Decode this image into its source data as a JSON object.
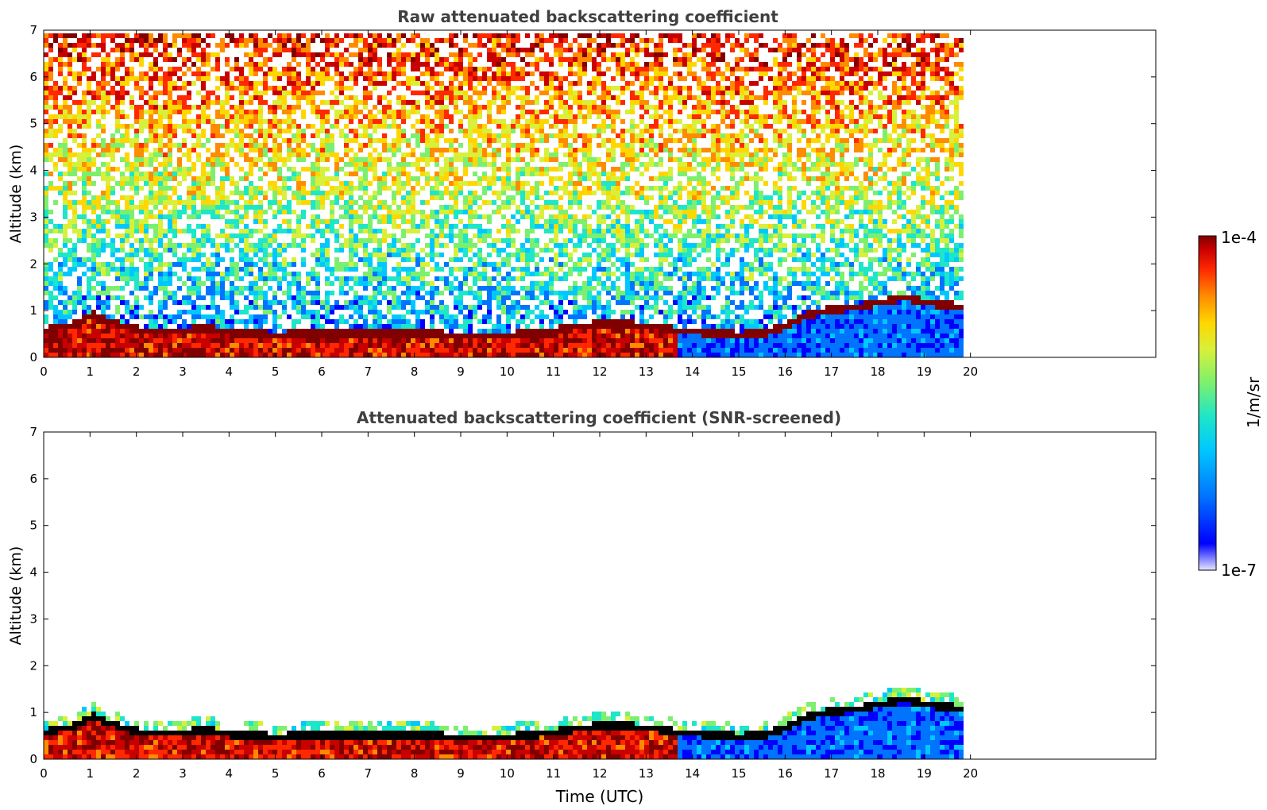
{
  "colors": {
    "colormap": [
      "#0000ff",
      "#0073ff",
      "#00c8ff",
      "#1ee6c8",
      "#7cf06e",
      "#d8f03a",
      "#ffd700",
      "#ff8c00",
      "#ff2800",
      "#c80000",
      "#800000"
    ],
    "screened_peak": "#000000"
  },
  "chart_data": [
    {
      "type": "heatmap",
      "title": "Raw attenuated backscattering coefficient",
      "xlabel": "",
      "ylabel": "Altitude (km)",
      "xlim": [
        0,
        24
      ],
      "ylim": [
        0,
        7
      ],
      "xticks": [
        "0",
        "1",
        "2",
        "3",
        "4",
        "5",
        "6",
        "7",
        "8",
        "9",
        "10",
        "11",
        "12",
        "13",
        "14",
        "15",
        "16",
        "17",
        "18",
        "19",
        "20"
      ],
      "yticks": [
        "0",
        "1",
        "2",
        "3",
        "4",
        "5",
        "6",
        "7"
      ],
      "data_end_hour": 19.8,
      "boundary_layer_top_km": [
        [
          0,
          0.55
        ],
        [
          0.5,
          0.65
        ],
        [
          1.0,
          0.9
        ],
        [
          1.5,
          0.7
        ],
        [
          2,
          0.55
        ],
        [
          3,
          0.55
        ],
        [
          3.5,
          0.6
        ],
        [
          4,
          0.5
        ],
        [
          5,
          0.45
        ],
        [
          6,
          0.5
        ],
        [
          7,
          0.5
        ],
        [
          8,
          0.48
        ],
        [
          9,
          0.45
        ],
        [
          10,
          0.45
        ],
        [
          11,
          0.55
        ],
        [
          12,
          0.7
        ],
        [
          13,
          0.65
        ],
        [
          13.6,
          0.55
        ],
        [
          14,
          0.52
        ],
        [
          15,
          0.45
        ],
        [
          15.5,
          0.5
        ],
        [
          16,
          0.65
        ],
        [
          16.5,
          0.9
        ],
        [
          17,
          1.0
        ],
        [
          17.5,
          1.05
        ],
        [
          18,
          1.15
        ],
        [
          18.5,
          1.25
        ],
        [
          19,
          1.15
        ],
        [
          19.8,
          1.05
        ]
      ],
      "colorbar": {
        "min_label": "1e-7",
        "max_label": "1e-4",
        "label": "1/m/sr",
        "scale": "log"
      }
    },
    {
      "type": "heatmap",
      "title": "Attenuated backscattering coefficient (SNR-screened)",
      "xlabel": "Time (UTC)",
      "ylabel": "Altitude (km)",
      "xlim": [
        0,
        24
      ],
      "ylim": [
        0,
        7
      ],
      "xticks": [
        "0",
        "1",
        "2",
        "3",
        "4",
        "5",
        "6",
        "7",
        "8",
        "9",
        "10",
        "11",
        "12",
        "13",
        "14",
        "15",
        "16",
        "17",
        "18",
        "19",
        "20"
      ],
      "yticks": [
        "0",
        "1",
        "2",
        "3",
        "4",
        "5",
        "6",
        "7"
      ],
      "data_end_hour": 19.8,
      "colorbar": {
        "min_label": "1e-7",
        "max_label": "1e-4",
        "label": "1/m/sr",
        "scale": "log"
      }
    }
  ]
}
